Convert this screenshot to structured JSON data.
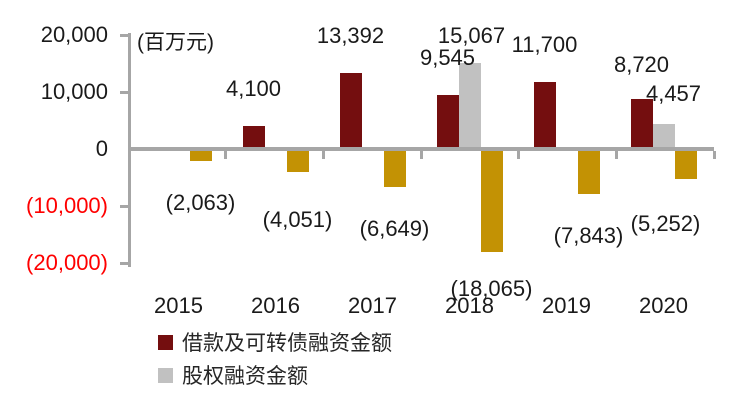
{
  "chart_data": {
    "type": "bar",
    "unit_label": "(百万元)",
    "categories": [
      "2015",
      "2016",
      "2017",
      "2018",
      "2019",
      "2020"
    ],
    "series": [
      {
        "name": "借款及可转债融资金额",
        "color": "#740e0f",
        "in_legend": true,
        "values": [
          null,
          4100,
          13392,
          9545,
          11700,
          8720
        ],
        "labels": [
          "",
          "4,100",
          "13,392",
          "9,545",
          "11,700",
          "8,720"
        ]
      },
      {
        "name": "股权融资金额",
        "color": "#c1c1c1",
        "in_legend": true,
        "values": [
          null,
          null,
          null,
          15067,
          null,
          4457
        ],
        "labels": [
          "",
          "",
          "",
          "15,067",
          "",
          "4,457"
        ]
      },
      {
        "name": "",
        "color": "#c39204",
        "in_legend": false,
        "values": [
          -2063,
          -4051,
          -6649,
          -18065,
          -7843,
          -5252
        ],
        "labels": [
          "(2,063)",
          "(4,051)",
          "(6,649)",
          "(18,065)",
          "(7,843)",
          "(5,252)"
        ]
      }
    ],
    "y_axis": {
      "ylim": [
        -20000,
        20000
      ],
      "ticks": [
        {
          "label": "20,000",
          "value": 20000,
          "negative": false
        },
        {
          "label": "10,000",
          "value": 10000,
          "negative": false
        },
        {
          "label": "0",
          "value": 0,
          "negative": false
        },
        {
          "label": "(10,000)",
          "value": -10000,
          "negative": true
        },
        {
          "label": "(20,000)",
          "value": -20000,
          "negative": true
        }
      ]
    },
    "colors": {
      "axis": "#a6a6a6",
      "label_text": "#1a1a1a",
      "negative_tick_label": "#ff0000"
    },
    "legend_position": "bottom-left",
    "grid": false
  }
}
